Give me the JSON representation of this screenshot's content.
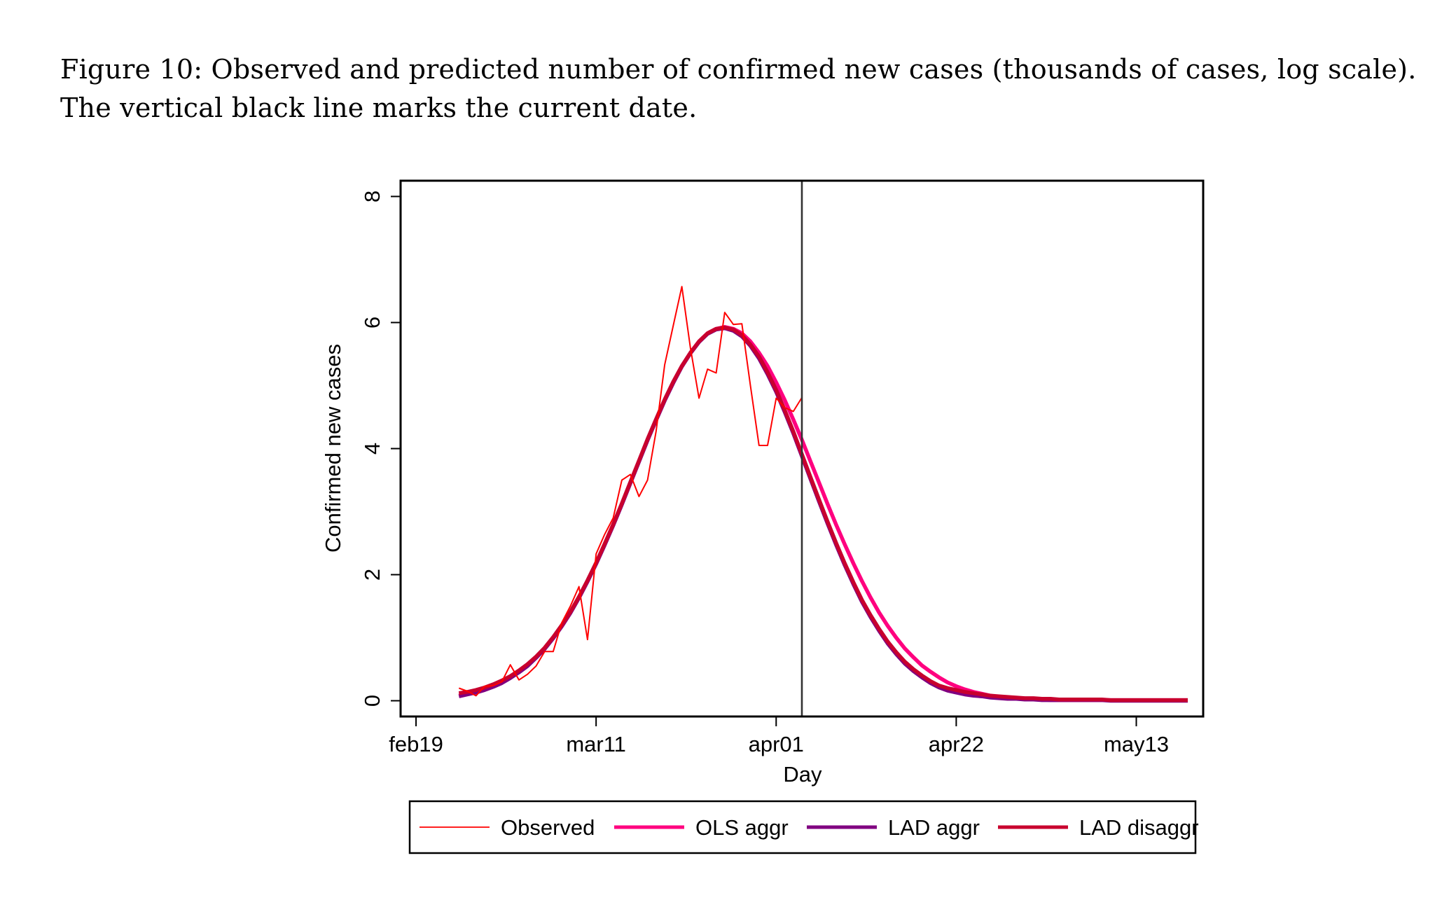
{
  "caption": {
    "line1": "Figure 10: Observed and predicted number of confirmed new cases (thousands of cases, log scale).",
    "line2": "The vertical black line marks the current date."
  },
  "chart_data": {
    "type": "line",
    "title": "",
    "xlabel": "Day",
    "ylabel": "Confirmed new cases",
    "x_axis": {
      "unit": "day index (0 = feb19)",
      "range": [
        -1.8,
        91.8
      ],
      "ticks": [
        {
          "value": 0,
          "label": "feb19"
        },
        {
          "value": 21,
          "label": "mar11"
        },
        {
          "value": 42,
          "label": "apr01"
        },
        {
          "value": 63,
          "label": "apr22"
        },
        {
          "value": 84,
          "label": "may13"
        }
      ]
    },
    "y_axis": {
      "range": [
        -0.25,
        8.25
      ],
      "ticks": [
        {
          "value": 0,
          "label": "0"
        },
        {
          "value": 2,
          "label": "2"
        },
        {
          "value": 4,
          "label": "4"
        },
        {
          "value": 6,
          "label": "6"
        },
        {
          "value": 8,
          "label": "8"
        }
      ]
    },
    "grid": false,
    "current_date": {
      "value": 45,
      "label": "apr04",
      "color": "#333333"
    },
    "legend": {
      "placement": "bottom",
      "columns": 4
    },
    "series": [
      {
        "name": "Observed",
        "color": "#ff0000",
        "weight": "thin",
        "x_start": 5,
        "values": [
          0.2,
          0.15,
          0.08,
          0.23,
          0.24,
          0.3,
          0.57,
          0.33,
          0.42,
          0.55,
          0.78,
          0.78,
          1.24,
          1.5,
          1.81,
          0.97,
          2.33,
          2.64,
          2.9,
          3.5,
          3.59,
          3.24,
          3.5,
          4.28,
          5.33,
          5.95,
          6.57,
          5.6,
          4.8,
          5.26,
          5.2,
          6.16,
          5.97,
          5.98,
          5.0,
          4.05,
          4.05,
          4.8,
          4.65,
          4.59,
          4.81
        ]
      },
      {
        "name": "OLS aggr",
        "color": "#ff007f",
        "weight": "thick",
        "x_start": 5,
        "values": [
          0.08,
          0.11,
          0.14,
          0.18,
          0.23,
          0.29,
          0.37,
          0.46,
          0.56,
          0.69,
          0.83,
          1.0,
          1.19,
          1.4,
          1.64,
          1.9,
          2.18,
          2.48,
          2.79,
          3.12,
          3.46,
          3.8,
          4.14,
          4.46,
          4.77,
          5.05,
          5.31,
          5.52,
          5.7,
          5.83,
          5.9,
          5.93,
          5.9,
          5.83,
          5.7,
          5.52,
          5.31,
          5.05,
          4.77,
          4.46,
          4.14,
          3.8,
          3.46,
          3.12,
          2.79,
          2.48,
          2.18,
          1.9,
          1.64,
          1.4,
          1.19,
          1.0,
          0.83,
          0.69,
          0.56,
          0.46,
          0.37,
          0.29,
          0.23,
          0.18,
          0.14,
          0.11,
          0.08,
          0.06,
          0.05,
          0.04,
          0.03,
          0.02,
          0.02,
          0.01,
          0.01,
          0.01,
          0.01,
          0.01,
          0.01,
          0.01,
          0.01,
          0.01,
          0.01,
          0.01,
          0.01,
          0.01,
          0.01,
          0.01,
          0.01,
          0.01
        ]
      },
      {
        "name": "LAD aggr",
        "color": "#800080",
        "weight": "thick",
        "x_start": 5,
        "values": [
          0.07,
          0.1,
          0.13,
          0.17,
          0.22,
          0.28,
          0.36,
          0.45,
          0.55,
          0.68,
          0.82,
          0.99,
          1.18,
          1.39,
          1.63,
          1.89,
          2.17,
          2.47,
          2.78,
          3.11,
          3.45,
          3.79,
          4.13,
          4.45,
          4.76,
          5.04,
          5.3,
          5.51,
          5.69,
          5.82,
          5.89,
          5.91,
          5.87,
          5.78,
          5.63,
          5.43,
          5.18,
          4.9,
          4.58,
          4.24,
          3.88,
          3.52,
          3.16,
          2.81,
          2.47,
          2.15,
          1.85,
          1.57,
          1.33,
          1.11,
          0.91,
          0.74,
          0.59,
          0.47,
          0.37,
          0.28,
          0.21,
          0.16,
          0.13,
          0.1,
          0.08,
          0.07,
          0.05,
          0.04,
          0.03,
          0.03,
          0.02,
          0.02,
          0.01,
          0.01,
          0.01,
          0.01,
          0.01,
          0.01,
          0.01,
          0.01,
          0.0,
          0.0,
          0.0,
          0.0,
          0.0,
          0.0,
          0.0,
          0.0,
          0.0,
          0.0
        ]
      },
      {
        "name": "LAD disaggr",
        "color": "#c8002e",
        "weight": "thick",
        "x_start": 5,
        "values": [
          0.12,
          0.14,
          0.17,
          0.21,
          0.26,
          0.32,
          0.39,
          0.48,
          0.58,
          0.7,
          0.84,
          1.01,
          1.2,
          1.41,
          1.65,
          1.91,
          2.19,
          2.49,
          2.8,
          3.13,
          3.47,
          3.81,
          4.15,
          4.47,
          4.78,
          5.06,
          5.31,
          5.52,
          5.7,
          5.83,
          5.9,
          5.92,
          5.89,
          5.8,
          5.65,
          5.46,
          5.21,
          4.93,
          4.61,
          4.27,
          3.91,
          3.55,
          3.19,
          2.84,
          2.5,
          2.18,
          1.88,
          1.6,
          1.36,
          1.14,
          0.94,
          0.77,
          0.62,
          0.5,
          0.4,
          0.31,
          0.24,
          0.2,
          0.17,
          0.14,
          0.12,
          0.1,
          0.08,
          0.07,
          0.06,
          0.05,
          0.04,
          0.04,
          0.03,
          0.03,
          0.02,
          0.02,
          0.02,
          0.02,
          0.02,
          0.02,
          0.01,
          0.01,
          0.01,
          0.01,
          0.01,
          0.01,
          0.01,
          0.01,
          0.01,
          0.01
        ]
      }
    ]
  }
}
